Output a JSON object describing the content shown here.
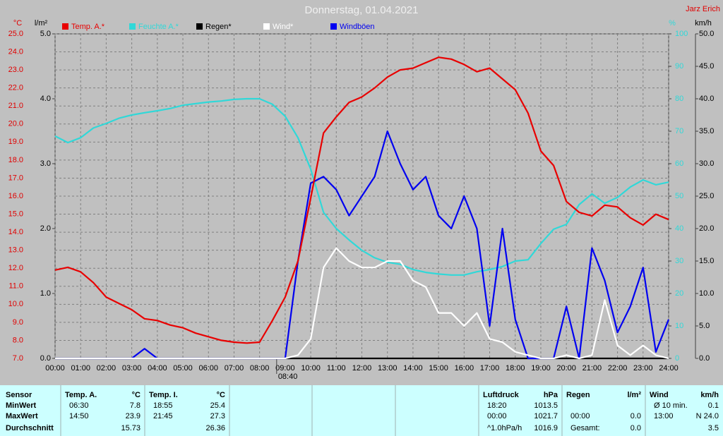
{
  "chart_data": {
    "type": "line",
    "title": "Donnerstag, 01.04.2021",
    "author": "Jarz Erich",
    "y_unit": "°C",
    "y4_unit": "l/m²",
    "y2_unit": "%",
    "y3_unit": "km/h",
    "x": [
      0,
      0.5,
      1,
      1.5,
      2,
      2.5,
      3,
      3.5,
      4,
      4.5,
      5,
      5.5,
      6,
      6.5,
      7,
      7.5,
      8,
      8.5,
      9,
      9.5,
      10,
      10.5,
      11,
      11.5,
      12,
      12.5,
      13,
      13.5,
      14,
      14.5,
      15,
      15.5,
      16,
      16.5,
      17,
      17.5,
      18,
      18.5,
      19,
      19.5,
      20,
      20.5,
      21,
      21.5,
      22,
      22.5,
      23,
      23.5,
      24
    ],
    "xlim": [
      0,
      24
    ],
    "xticks": [
      {
        "value": 0,
        "label": "00:00"
      },
      {
        "value": 1,
        "label": "01:00"
      },
      {
        "value": 2,
        "label": "02:00"
      },
      {
        "value": 3,
        "label": "03:00"
      },
      {
        "value": 4,
        "label": "04:00"
      },
      {
        "value": 5,
        "label": "05:00"
      },
      {
        "value": 6,
        "label": "06:00"
      },
      {
        "value": 7,
        "label": "07:00"
      },
      {
        "value": 8,
        "label": "08:00"
      },
      {
        "value": 9,
        "label": "09:00"
      },
      {
        "value": 10,
        "label": "10:00"
      },
      {
        "value": 11,
        "label": "11:00"
      },
      {
        "value": 12,
        "label": "12:00"
      },
      {
        "value": 13,
        "label": "13:00"
      },
      {
        "value": 14,
        "label": "14:00"
      },
      {
        "value": 15,
        "label": "15:00"
      },
      {
        "value": 16,
        "label": "16:00"
      },
      {
        "value": 17,
        "label": "17:00"
      },
      {
        "value": 18,
        "label": "18:00"
      },
      {
        "value": 19,
        "label": "19:00"
      },
      {
        "value": 20,
        "label": "20:00"
      },
      {
        "value": 21,
        "label": "21:00"
      },
      {
        "value": 22,
        "label": "22:00"
      },
      {
        "value": 23,
        "label": "23:00"
      },
      {
        "value": 24,
        "label": "24:00"
      }
    ],
    "marker": {
      "value": 8.667,
      "label": "08:40"
    },
    "ylim": [
      7,
      25
    ],
    "yticks": [
      {
        "value": 7,
        "label": "7.0"
      },
      {
        "value": 8,
        "label": "8.0"
      },
      {
        "value": 9,
        "label": "9.0"
      },
      {
        "value": 10,
        "label": "10.0"
      },
      {
        "value": 11,
        "label": "11.0"
      },
      {
        "value": 12,
        "label": "12.0"
      },
      {
        "value": 13,
        "label": "13.0"
      },
      {
        "value": 14,
        "label": "14.0"
      },
      {
        "value": 15,
        "label": "15.0"
      },
      {
        "value": 16,
        "label": "16.0"
      },
      {
        "value": 17,
        "label": "17.0"
      },
      {
        "value": 18,
        "label": "18.0"
      },
      {
        "value": 19,
        "label": "19.0"
      },
      {
        "value": 20,
        "label": "20.0"
      },
      {
        "value": 21,
        "label": "21.0"
      },
      {
        "value": 22,
        "label": "22.0"
      },
      {
        "value": 23,
        "label": "23.0"
      },
      {
        "value": 24,
        "label": "24.0"
      },
      {
        "value": 25,
        "label": "25.0"
      }
    ],
    "y4lim": [
      0,
      5
    ],
    "y4ticks": [
      {
        "value": 0,
        "label": "0.0"
      },
      {
        "value": 1,
        "label": "1.0"
      },
      {
        "value": 2,
        "label": "2.0"
      },
      {
        "value": 3,
        "label": "3.0"
      },
      {
        "value": 4,
        "label": "4.0"
      },
      {
        "value": 5,
        "label": "5.0"
      }
    ],
    "y2lim": [
      0,
      100
    ],
    "y2ticks": [
      0,
      10,
      20,
      30,
      40,
      50,
      60,
      70,
      80,
      90,
      100
    ],
    "y3lim": [
      0,
      50
    ],
    "y3ticks": [
      {
        "value": 0,
        "label": "0.0"
      },
      {
        "value": 5,
        "label": "5.0"
      },
      {
        "value": 10,
        "label": "10.0"
      },
      {
        "value": 15,
        "label": "15.0"
      },
      {
        "value": 20,
        "label": "20.0"
      },
      {
        "value": 25,
        "label": "25.0"
      },
      {
        "value": 30,
        "label": "30.0"
      },
      {
        "value": 35,
        "label": "35.0"
      },
      {
        "value": 40,
        "label": "40.0"
      },
      {
        "value": 45,
        "label": "45.0"
      },
      {
        "value": 50,
        "label": "50.0"
      }
    ],
    "grid": true,
    "series": [
      {
        "name": "Temp. A.*",
        "color": "#e80000",
        "axis": "y",
        "values": [
          11.9,
          12.05,
          11.8,
          11.2,
          10.4,
          10.05,
          9.7,
          9.2,
          9.1,
          8.85,
          8.7,
          8.4,
          8.2,
          8.0,
          7.9,
          7.85,
          7.9,
          9.1,
          10.4,
          12.4,
          15.9,
          19.5,
          20.4,
          21.2,
          21.5,
          22.0,
          22.6,
          23.0,
          23.1,
          23.4,
          23.7,
          23.6,
          23.3,
          22.9,
          23.1,
          22.5,
          21.9,
          20.6,
          18.5,
          17.7,
          15.7,
          15.1,
          14.9,
          15.5,
          15.4,
          14.8,
          14.4,
          15.0,
          14.7
        ]
      },
      {
        "name": "Feuchte A.*",
        "color": "#30d8d8",
        "axis": "y2",
        "values": [
          68.5,
          66.5,
          68,
          71,
          72.4,
          74,
          75,
          75.7,
          76.3,
          77,
          78,
          78.5,
          79,
          79.3,
          79.8,
          80,
          80,
          78.3,
          74.6,
          68,
          58.3,
          45,
          40,
          36.5,
          33.3,
          31,
          29.6,
          29,
          27.4,
          26.5,
          26,
          25.7,
          25.7,
          26.7,
          27.4,
          28.3,
          30,
          30.4,
          35.4,
          39.8,
          41.3,
          47.4,
          50.7,
          47.8,
          49.6,
          52.8,
          55,
          53.5,
          54.3
        ]
      },
      {
        "name": "Regen*",
        "color": "#000000",
        "axis": "y4",
        "values": [
          0,
          0,
          0,
          0,
          0,
          0,
          0,
          0,
          0,
          0,
          0,
          0,
          0,
          0,
          0,
          0,
          0,
          0,
          0,
          0,
          0,
          0,
          0,
          0,
          0,
          0,
          0,
          0,
          0,
          0,
          0,
          0,
          0,
          0,
          0,
          0,
          0,
          0,
          0,
          0,
          0,
          0,
          0,
          0,
          0,
          0,
          0,
          0,
          0
        ]
      },
      {
        "name": "Wind*",
        "color": "#ffffff",
        "axis": "y3",
        "values": [
          0,
          0,
          0,
          0,
          0,
          0,
          0,
          0,
          0,
          0,
          0,
          0,
          0,
          0,
          0,
          0,
          0,
          0,
          0,
          0.5,
          3,
          14,
          17,
          15,
          14,
          14,
          15,
          15,
          12,
          11,
          7,
          7,
          5,
          7,
          3,
          2.5,
          1,
          0.5,
          0,
          0,
          0.5,
          0,
          0.5,
          9,
          2,
          0.5,
          2,
          0.5,
          0
        ]
      },
      {
        "name": "Windböen",
        "color": "#0000f0",
        "axis": "y3",
        "values": [
          0,
          0,
          0,
          0,
          0,
          0,
          0,
          1.5,
          0,
          0,
          0,
          0,
          0,
          0,
          0,
          0,
          0,
          0,
          0,
          15,
          27,
          28,
          26,
          22,
          25,
          28,
          35,
          30,
          26,
          28,
          22,
          20,
          25,
          20,
          5,
          20,
          6,
          0,
          0,
          0,
          8,
          0,
          17,
          12,
          4,
          8,
          14,
          1,
          6
        ]
      }
    ]
  },
  "summary_table": {
    "sensor": {
      "title": "Sensor",
      "rows": [
        "MinWert",
        "MaxWert",
        "Durchschnitt"
      ]
    },
    "groups": [
      {
        "title": "Temp. A.",
        "unit": "°C",
        "rows": [
          [
            "06:30",
            "7.8"
          ],
          [
            "14:50",
            "23.9"
          ],
          [
            "15.73"
          ]
        ]
      },
      {
        "title": "Temp. I.",
        "unit": "°C",
        "rows": [
          [
            "18:55",
            "25.4"
          ],
          [
            "21:45",
            "27.3"
          ],
          [
            "26.36"
          ]
        ]
      },
      {
        "title": "Luftdruck",
        "unit": "hPa",
        "rows": [
          [
            "18:20",
            "1013.5"
          ],
          [
            "00:00",
            "1021.7"
          ],
          [
            "^1.0hPa/h",
            "1016.9"
          ]
        ]
      },
      {
        "title": "Regen",
        "unit": "l/m²",
        "rows": [
          [],
          [
            "00:00",
            "0.0"
          ],
          [
            "Gesamt:",
            "0.0"
          ]
        ]
      },
      {
        "title": "Wind",
        "unit": "km/h",
        "rows": [
          [
            "Ø 10 min.",
            "0.1"
          ],
          [
            "13:00",
            "N 24.0"
          ],
          [
            "3.5"
          ]
        ]
      }
    ]
  }
}
